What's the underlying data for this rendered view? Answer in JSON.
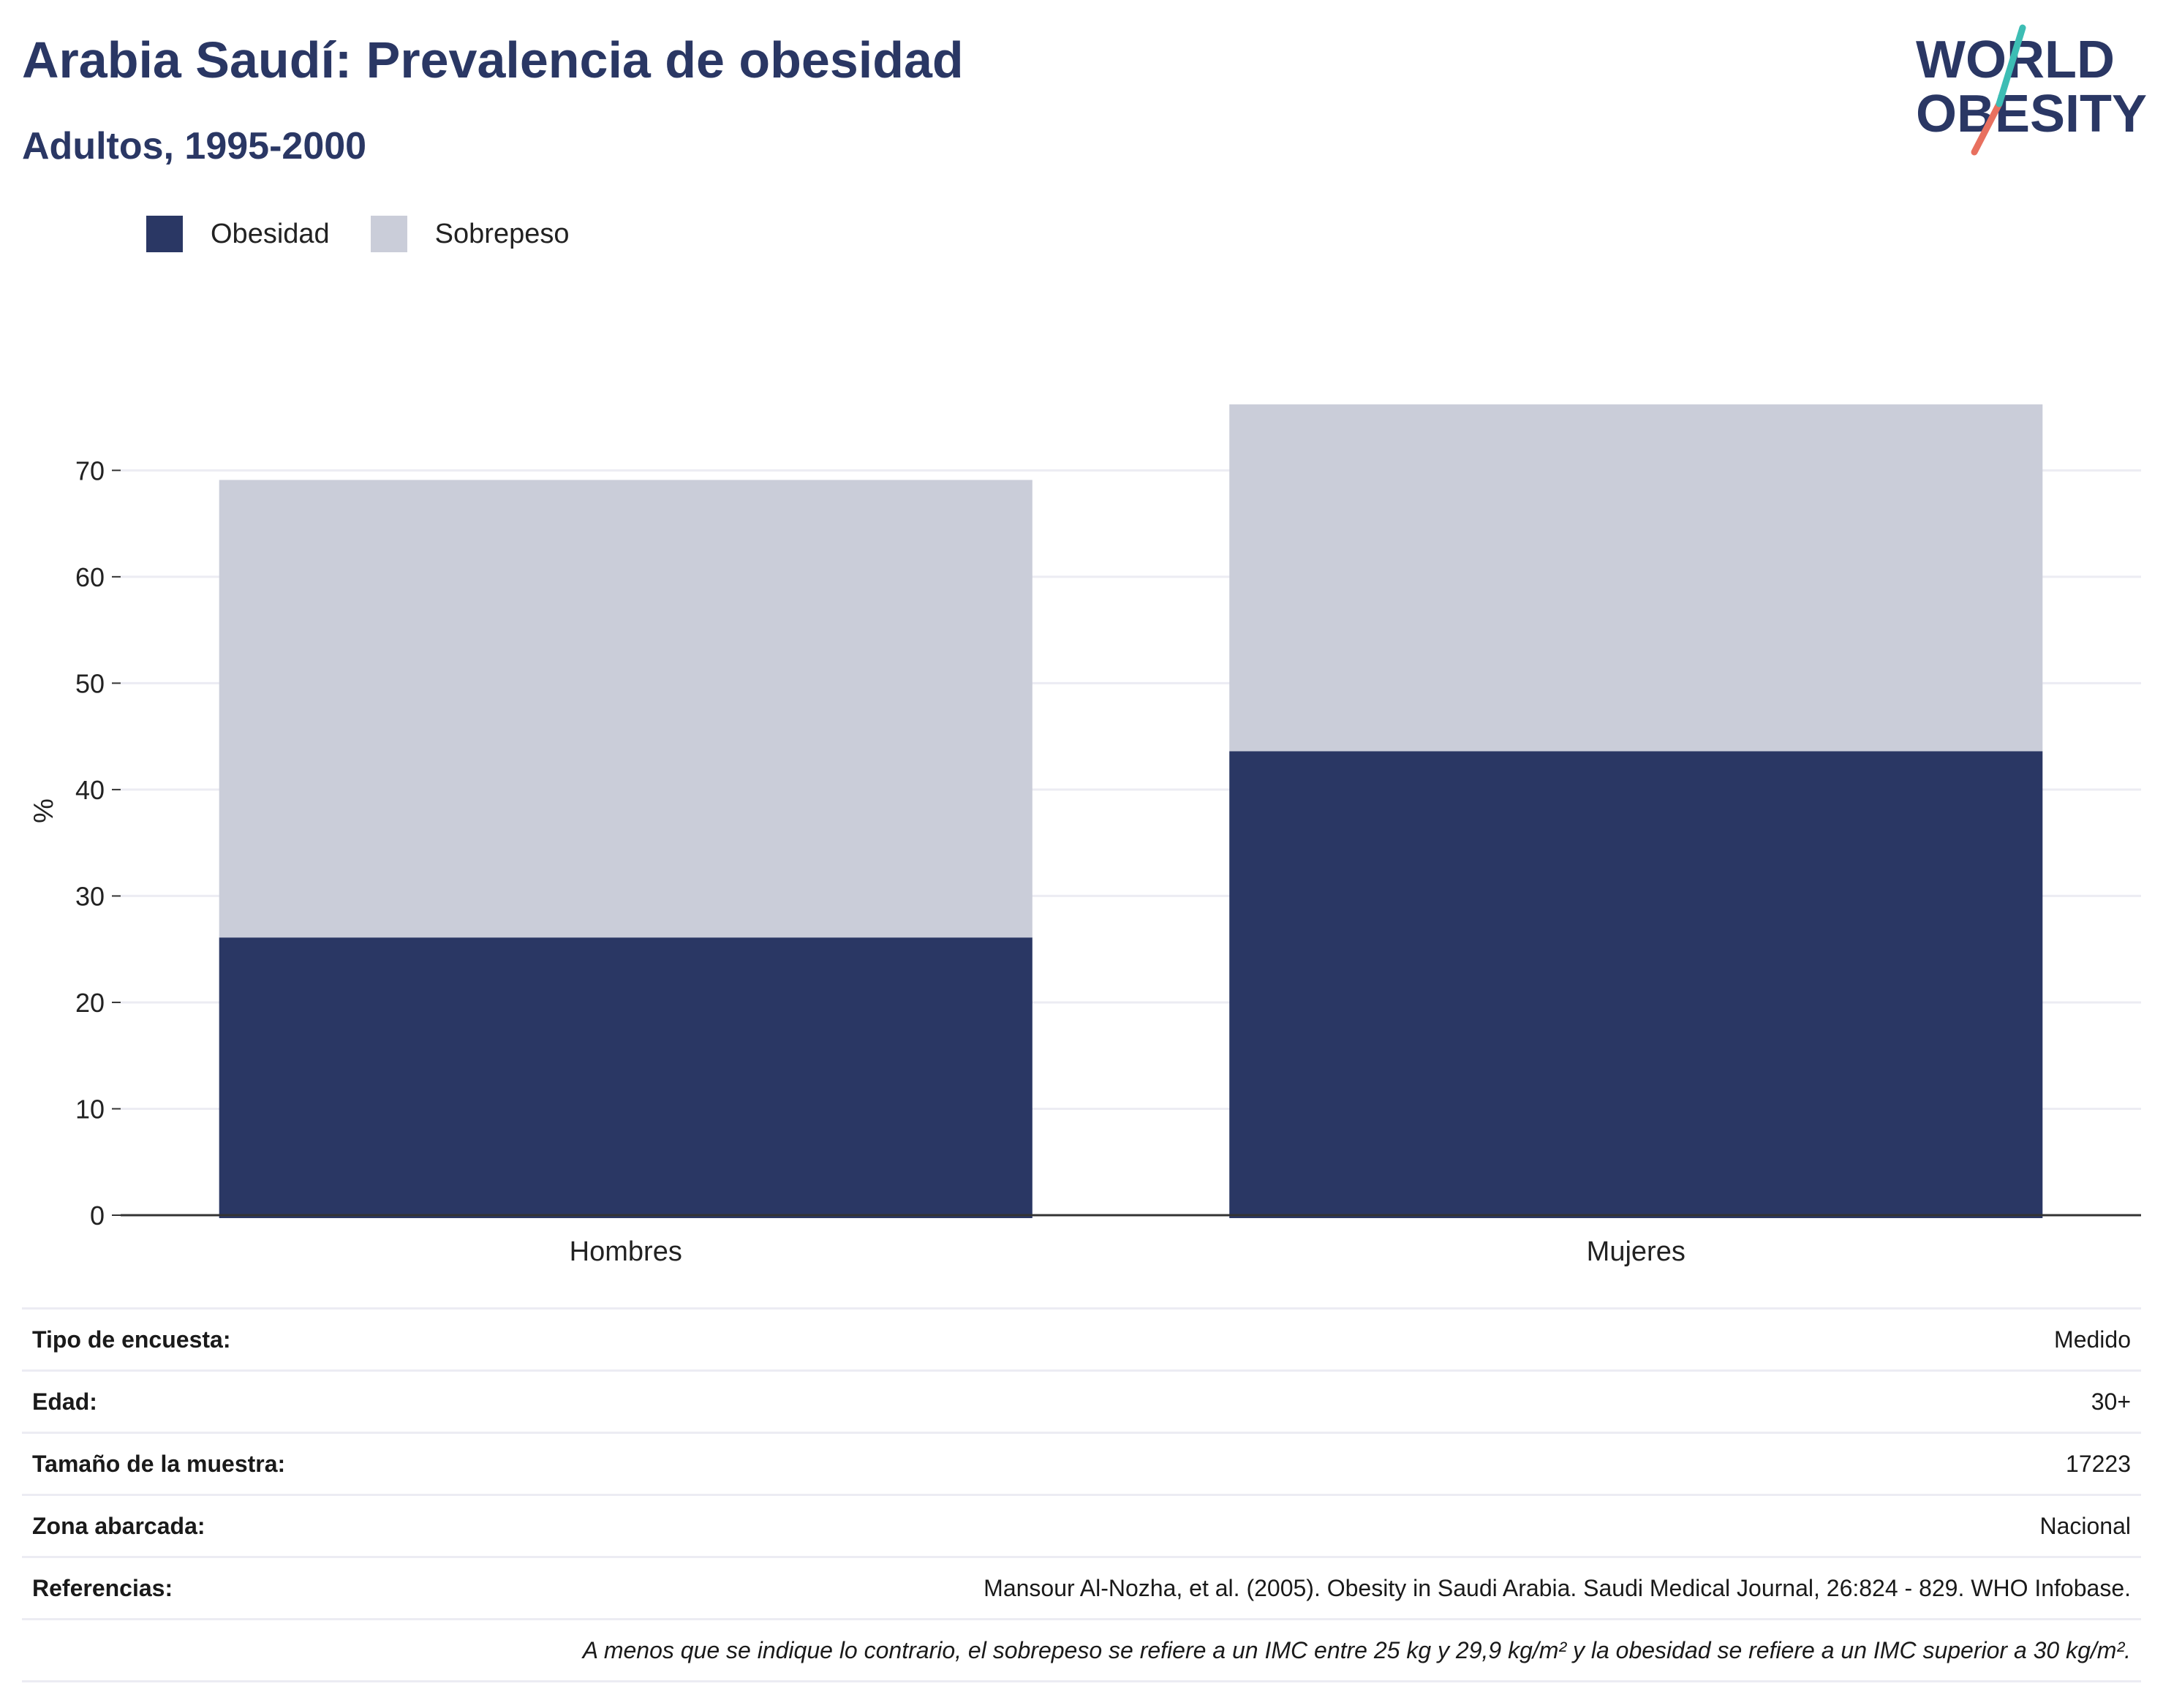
{
  "header": {
    "title": "Arabia Saudí: Prevalencia de obesidad",
    "subtitle": "Adultos, 1995-2000"
  },
  "logo": {
    "line1": "WORLD",
    "line2": "OBESITY"
  },
  "colors": {
    "obesidad": "#2a3764",
    "sobrepeso": "#cacdd9",
    "title": "#2a3764",
    "grid": "#ececf3",
    "axis": "#333333"
  },
  "chart_data": {
    "type": "bar",
    "stacked": true,
    "categories": [
      "Hombres",
      "Mujeres"
    ],
    "series": [
      {
        "name": "Obesidad",
        "values": [
          26.1,
          43.6
        ]
      },
      {
        "name": "Sobrepeso",
        "values": [
          43.0,
          32.6
        ]
      }
    ],
    "ylabel": "%",
    "xlabel": "",
    "ylim": [
      0,
      76
    ],
    "yticks": [
      0,
      10,
      20,
      30,
      40,
      50,
      60,
      70
    ],
    "grid": true,
    "legend_position": "top-left"
  },
  "metadata": [
    {
      "label": "Tipo de encuesta:",
      "value": "Medido"
    },
    {
      "label": "Edad:",
      "value": "30+"
    },
    {
      "label": "Tamaño de la muestra:",
      "value": "17223"
    },
    {
      "label": "Zona abarcada:",
      "value": "Nacional"
    },
    {
      "label": "Referencias:",
      "value": "Mansour Al-Nozha, et al. (2005). Obesity in Saudi Arabia. Saudi Medical Journal, 26:824 - 829. WHO Infobase."
    }
  ],
  "footnote": "A menos que se indique lo contrario, el sobrepeso se refiere a un IMC entre 25 kg y 29,9 kg/m² y la obesidad se refiere a un IMC superior a 30 kg/m²."
}
